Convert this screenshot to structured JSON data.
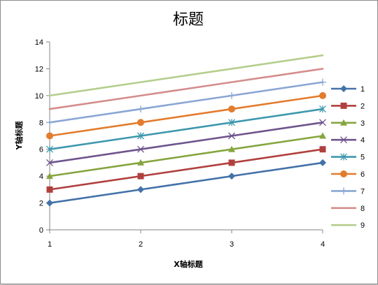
{
  "chart_data": {
    "type": "line",
    "title": "标题",
    "xlabel": "X轴标题",
    "ylabel": "Y轴标题",
    "categories": [
      "1",
      "2",
      "3",
      "4"
    ],
    "ylim": [
      0,
      14
    ],
    "yticks": [
      0,
      2,
      4,
      6,
      8,
      10,
      12,
      14
    ],
    "grid": false,
    "legend_position": "right",
    "series": [
      {
        "name": "1",
        "values": [
          2,
          3,
          4,
          5
        ],
        "color": "#4472a8",
        "marker": "diamond"
      },
      {
        "name": "2",
        "values": [
          3,
          4,
          5,
          6
        ],
        "color": "#b0403e",
        "marker": "square"
      },
      {
        "name": "3",
        "values": [
          4,
          5,
          6,
          7
        ],
        "color": "#86a53f",
        "marker": "triangle"
      },
      {
        "name": "4",
        "values": [
          5,
          6,
          7,
          8
        ],
        "color": "#6e548c",
        "marker": "x"
      },
      {
        "name": "5",
        "values": [
          6,
          7,
          8,
          9
        ],
        "color": "#3e98ae",
        "marker": "star"
      },
      {
        "name": "6",
        "values": [
          7,
          8,
          9,
          10
        ],
        "color": "#e27c2e",
        "marker": "circle"
      },
      {
        "name": "7",
        "values": [
          8,
          9,
          10,
          11
        ],
        "color": "#8aa6d4",
        "marker": "plus"
      },
      {
        "name": "8",
        "values": [
          9,
          10,
          11,
          12
        ],
        "color": "#d48c8c",
        "marker": "none"
      },
      {
        "name": "9",
        "values": [
          10,
          11,
          12,
          13
        ],
        "color": "#b4ce8c",
        "marker": "none"
      }
    ]
  }
}
